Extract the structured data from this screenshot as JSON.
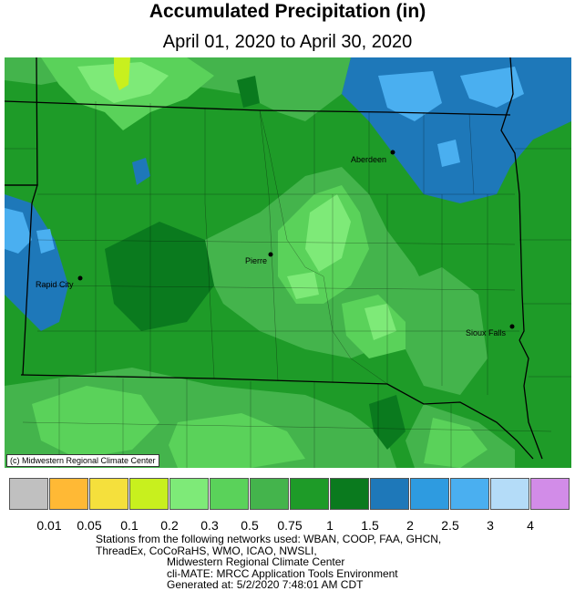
{
  "title": "Accumulated Precipitation (in)",
  "subtitle": "April 01, 2020 to April 30, 2020",
  "credit": "(c) Midwestern Regional Climate Center",
  "cities": [
    {
      "name": "Aberdeen"
    },
    {
      "name": "Pierre"
    },
    {
      "name": "Rapid City"
    },
    {
      "name": "Sioux Falls"
    }
  ],
  "legend": {
    "colors": [
      "#c0c0c0",
      "#ffb935",
      "#f5e03c",
      "#c8f01e",
      "#7eea78",
      "#5ad25a",
      "#44b44c",
      "#1e9b28",
      "#0a7a1e",
      "#1e78b9",
      "#2e9be0",
      "#4aaff0",
      "#b4dcf8",
      "#d28ce8"
    ],
    "labels": [
      "0.01",
      "0.05",
      "0.1",
      "0.2",
      "0.3",
      "0.5",
      "0.75",
      "1",
      "1.5",
      "2",
      "2.5",
      "3",
      "4"
    ]
  },
  "footer": {
    "line1": "Stations from the following networks used: WBAN, COOP, FAA, GHCN,",
    "line2": "ThreadEx, CoCoRaHS, WMO, ICAO, NWSLI,",
    "line3": "Midwestern Regional Climate Center",
    "line4": "cli-MATE: MRCC Application Tools Environment",
    "line5": "Generated at: 5/2/2020 7:48:01 AM CDT"
  }
}
